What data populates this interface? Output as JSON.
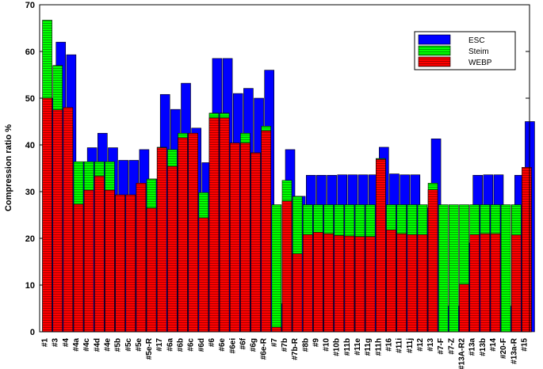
{
  "chart_data": {
    "type": "bar",
    "y_label": "Compression ratio %",
    "categories": [
      "#1",
      "#3",
      "#4",
      "#4a",
      "#4c",
      "#4d",
      "#4e",
      "#5b",
      "#5c",
      "#5e",
      "#5e-R",
      "#17",
      "#6a",
      "#6b",
      "#6c",
      "#6d",
      "#6",
      "#6e",
      "#6ei",
      "#6f",
      "#6g",
      "#6e-R",
      "#7",
      "#7b",
      "#7b-R",
      "#8b",
      "#9",
      "#10",
      "#10b",
      "#11b",
      "#11e",
      "#11g",
      "#11h",
      "#16",
      "#11i",
      "#11j",
      "#12",
      "#13",
      "#7-F",
      "#7-Z",
      "#13A-R2",
      "#13a",
      "#13b",
      "#14",
      "#20-F",
      "#13a-R",
      "#15"
    ],
    "series": [
      {
        "name": "ESC",
        "color": "#0000ff",
        "values": [
          50,
          62,
          59.3,
          36.4,
          39.4,
          42.5,
          39.4,
          36.7,
          36.7,
          39,
          32.7,
          50.8,
          47.6,
          53.2,
          43.6,
          36.2,
          58.5,
          58.5,
          51,
          52.1,
          50,
          56,
          6,
          39,
          29,
          33.5,
          33.5,
          33.5,
          33.6,
          33.6,
          33.6,
          33.6,
          39.5,
          33.8,
          33.6,
          33.6,
          26.5,
          41.3,
          5.5,
          5.5,
          19,
          33.5,
          33.6,
          33.6,
          5.5,
          33.5,
          45
        ]
      },
      {
        "name": "Steim",
        "color": "#00ff00",
        "values": [
          66.7,
          57,
          44,
          36.4,
          36.4,
          36.4,
          36.4,
          29.3,
          29.3,
          31.5,
          32.7,
          39.5,
          39,
          42.5,
          42.5,
          29.8,
          46.8,
          46.8,
          40.4,
          42.5,
          38.3,
          44,
          27.2,
          32.4,
          29,
          27.2,
          27.2,
          27.2,
          27.2,
          27.2,
          27.2,
          27.2,
          37.1,
          27.2,
          27.2,
          27.2,
          27.2,
          31.8,
          27.2,
          27.2,
          27.2,
          27.2,
          27.2,
          27.2,
          27.2,
          27.2,
          33
        ]
      },
      {
        "name": "WEBP",
        "color": "#ff0000",
        "values": [
          50,
          47.5,
          48,
          27.3,
          30.3,
          33.3,
          30.3,
          29.3,
          29.3,
          31.8,
          26.5,
          39.4,
          35.4,
          41.5,
          42.5,
          24.4,
          45.8,
          45.8,
          40.4,
          40.4,
          38.3,
          43,
          1,
          28,
          16.7,
          20.8,
          21.3,
          21,
          20.6,
          20.5,
          20.4,
          20.4,
          36.9,
          21.8,
          21,
          20.8,
          20.8,
          30.4,
          0,
          0,
          10.2,
          20.8,
          21,
          21,
          0,
          20.7,
          35.2
        ]
      }
    ],
    "ylim": [
      0,
      70
    ],
    "yticks": [
      0,
      10,
      20,
      30,
      40,
      50,
      60,
      70
    ],
    "legend": "upper right"
  }
}
